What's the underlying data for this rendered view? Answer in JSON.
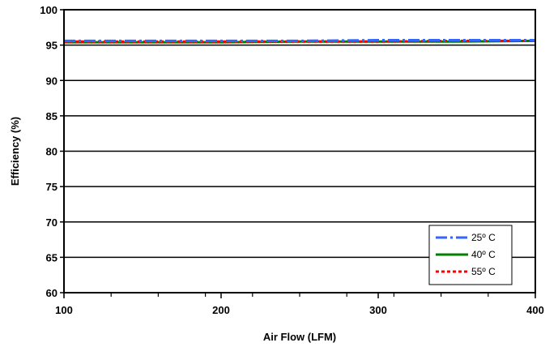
{
  "chart_data": {
    "type": "line",
    "title": "",
    "xlabel": "Air Flow (LFM)",
    "ylabel": "Efficiency (%)",
    "xlim": [
      100,
      400
    ],
    "ylim": [
      60,
      100
    ],
    "x_ticks": [
      100,
      200,
      300,
      400
    ],
    "y_ticks": [
      60,
      65,
      70,
      75,
      80,
      85,
      90,
      95,
      100
    ],
    "grid": "horizontal",
    "legend_position": "bottom-right",
    "series": [
      {
        "name": "25º C",
        "color": "#3366ff",
        "style": "dash-dot",
        "x": [
          100,
          150,
          200,
          250,
          300,
          350,
          400
        ],
        "y": [
          95.6,
          95.6,
          95.6,
          95.6,
          95.7,
          95.7,
          95.7
        ]
      },
      {
        "name": "40º C",
        "color": "#008000",
        "style": "solid",
        "x": [
          100,
          150,
          200,
          250,
          300,
          350,
          400
        ],
        "y": [
          95.4,
          95.4,
          95.4,
          95.5,
          95.5,
          95.5,
          95.6
        ]
      },
      {
        "name": "55º C",
        "color": "#ff0000",
        "style": "dotted",
        "x": [
          100,
          150,
          200,
          250,
          300,
          350,
          400
        ],
        "y": [
          95.5,
          95.5,
          95.5,
          95.5,
          95.5,
          95.6,
          95.6
        ]
      }
    ]
  }
}
